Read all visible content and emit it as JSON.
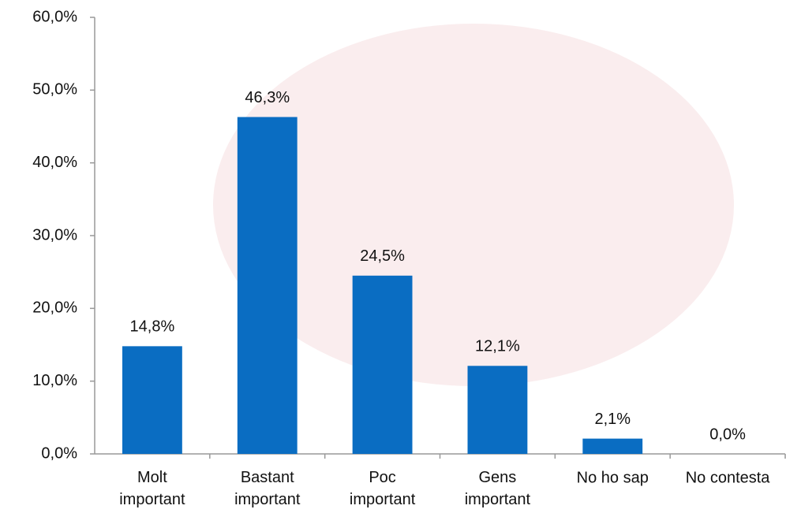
{
  "chart_data": {
    "type": "bar",
    "categories": [
      "Molt\nimportant",
      "Bastant\nimportant",
      "Poc\nimportant",
      "Gens\nimportant",
      "No ho sap",
      "No contesta"
    ],
    "values": [
      14.8,
      46.3,
      24.5,
      12.1,
      2.1,
      0.0
    ],
    "value_labels": [
      "14,8%",
      "46,3%",
      "24,5%",
      "12,1%",
      "2,1%",
      "0,0%"
    ],
    "color": "#0a6dc2",
    "ylim": [
      0,
      60
    ],
    "yticks": [
      {
        "value": 0,
        "label": "0,0%"
      },
      {
        "value": 10,
        "label": "10,0%"
      },
      {
        "value": 20,
        "label": "20,0%"
      },
      {
        "value": 30,
        "label": "30,0%"
      },
      {
        "value": 40,
        "label": "40,0%"
      },
      {
        "value": 50,
        "label": "50,0%"
      },
      {
        "value": 60,
        "label": "60,0%"
      }
    ],
    "grid": false
  }
}
